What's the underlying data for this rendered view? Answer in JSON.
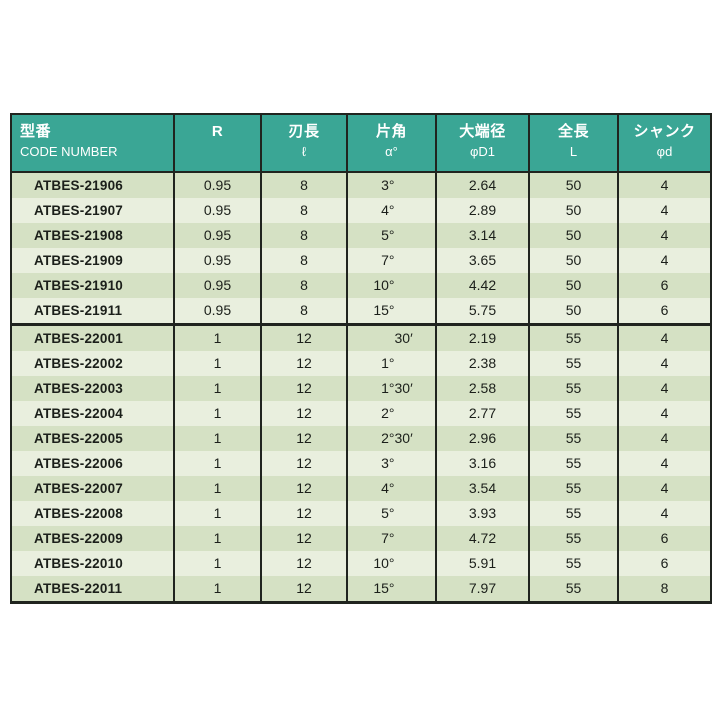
{
  "colors": {
    "header_bg": "#3aa695",
    "header_text": "#ffffff",
    "row_dark": "#d5e1c4",
    "row_light": "#e9efde",
    "border": "#20241f",
    "body_text": "#1b1f1a",
    "page_bg": "#ffffff"
  },
  "table": {
    "header": {
      "columns": [
        {
          "title": "型番",
          "subtitle": "CODE NUMBER"
        },
        {
          "title": "R",
          "subtitle": ""
        },
        {
          "title": "刃長",
          "subtitle": "ℓ"
        },
        {
          "title": "片角",
          "subtitle": "α°"
        },
        {
          "title": "大端径",
          "subtitle": "φD1"
        },
        {
          "title": "全長",
          "subtitle": "L"
        },
        {
          "title": "シャンク",
          "subtitle": "φd"
        }
      ]
    },
    "groups": [
      {
        "rows": [
          {
            "code_number": "ATBES-21906",
            "r": "0.95",
            "blade_length": "8",
            "half_angle": "3°",
            "large_end_dia": "2.64",
            "overall_length": "50",
            "shank_dia": "4"
          },
          {
            "code_number": "ATBES-21907",
            "r": "0.95",
            "blade_length": "8",
            "half_angle": "4°",
            "large_end_dia": "2.89",
            "overall_length": "50",
            "shank_dia": "4"
          },
          {
            "code_number": "ATBES-21908",
            "r": "0.95",
            "blade_length": "8",
            "half_angle": "5°",
            "large_end_dia": "3.14",
            "overall_length": "50",
            "shank_dia": "4"
          },
          {
            "code_number": "ATBES-21909",
            "r": "0.95",
            "blade_length": "8",
            "half_angle": "7°",
            "large_end_dia": "3.65",
            "overall_length": "50",
            "shank_dia": "4"
          },
          {
            "code_number": "ATBES-21910",
            "r": "0.95",
            "blade_length": "8",
            "half_angle": "10°",
            "large_end_dia": "4.42",
            "overall_length": "50",
            "shank_dia": "6"
          },
          {
            "code_number": "ATBES-21911",
            "r": "0.95",
            "blade_length": "8",
            "half_angle": "15°",
            "large_end_dia": "5.75",
            "overall_length": "50",
            "shank_dia": "6"
          }
        ]
      },
      {
        "rows": [
          {
            "code_number": "ATBES-22001",
            "r": "1",
            "blade_length": "12",
            "half_angle": "30′",
            "large_end_dia": "2.19",
            "overall_length": "55",
            "shank_dia": "4"
          },
          {
            "code_number": "ATBES-22002",
            "r": "1",
            "blade_length": "12",
            "half_angle": "1°",
            "large_end_dia": "2.38",
            "overall_length": "55",
            "shank_dia": "4"
          },
          {
            "code_number": "ATBES-22003",
            "r": "1",
            "blade_length": "12",
            "half_angle": "1°30′",
            "large_end_dia": "2.58",
            "overall_length": "55",
            "shank_dia": "4"
          },
          {
            "code_number": "ATBES-22004",
            "r": "1",
            "blade_length": "12",
            "half_angle": "2°",
            "large_end_dia": "2.77",
            "overall_length": "55",
            "shank_dia": "4"
          },
          {
            "code_number": "ATBES-22005",
            "r": "1",
            "blade_length": "12",
            "half_angle": "2°30′",
            "large_end_dia": "2.96",
            "overall_length": "55",
            "shank_dia": "4"
          },
          {
            "code_number": "ATBES-22006",
            "r": "1",
            "blade_length": "12",
            "half_angle": "3°",
            "large_end_dia": "3.16",
            "overall_length": "55",
            "shank_dia": "4"
          },
          {
            "code_number": "ATBES-22007",
            "r": "1",
            "blade_length": "12",
            "half_angle": "4°",
            "large_end_dia": "3.54",
            "overall_length": "55",
            "shank_dia": "4"
          },
          {
            "code_number": "ATBES-22008",
            "r": "1",
            "blade_length": "12",
            "half_angle": "5°",
            "large_end_dia": "3.93",
            "overall_length": "55",
            "shank_dia": "4"
          },
          {
            "code_number": "ATBES-22009",
            "r": "1",
            "blade_length": "12",
            "half_angle": "7°",
            "large_end_dia": "4.72",
            "overall_length": "55",
            "shank_dia": "6"
          },
          {
            "code_number": "ATBES-22010",
            "r": "1",
            "blade_length": "12",
            "half_angle": "10°",
            "large_end_dia": "5.91",
            "overall_length": "55",
            "shank_dia": "6"
          },
          {
            "code_number": "ATBES-22011",
            "r": "1",
            "blade_length": "12",
            "half_angle": "15°",
            "large_end_dia": "7.97",
            "overall_length": "55",
            "shank_dia": "8"
          }
        ]
      }
    ]
  }
}
